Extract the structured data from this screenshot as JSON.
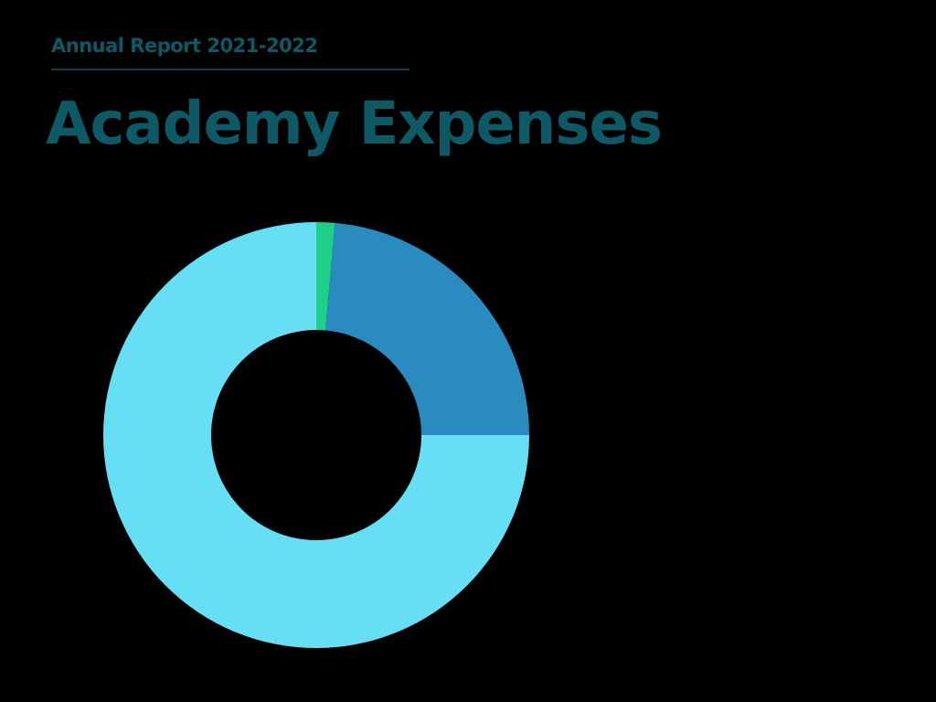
{
  "chart_data": {
    "type": "donut",
    "subtitle": "Annual Report 2021-2022",
    "title": "Academy Expenses",
    "values": [
      1.4,
      23.6,
      75.0
    ],
    "colors": [
      "#1ecf8a",
      "#2a8bbf",
      "#66dff4"
    ]
  }
}
